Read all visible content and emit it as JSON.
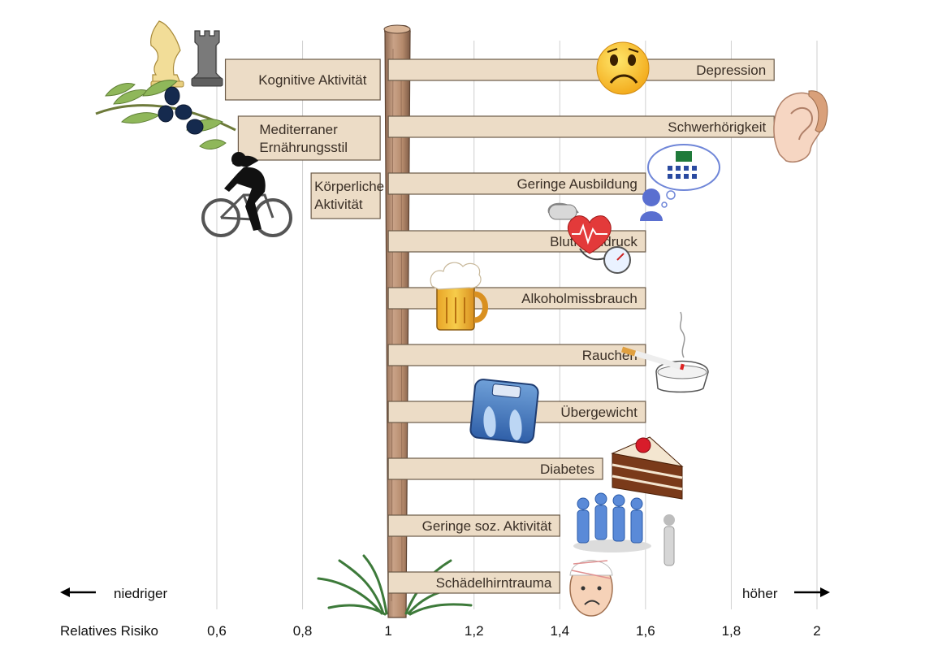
{
  "chart_data": {
    "type": "bar",
    "orientation": "horizontal",
    "baseline": 1,
    "xlim": [
      0.6,
      2.0
    ],
    "grid": true,
    "xlabel": "Relatives Risiko",
    "x_ticks": [
      "0,6",
      "0,8",
      "1",
      "1,2",
      "1,4",
      "1,6",
      "1,8",
      "2"
    ],
    "x_tick_values": [
      0.6,
      0.8,
      1.0,
      1.2,
      1.4,
      1.6,
      1.8,
      2.0
    ],
    "direction_low": "niedriger",
    "direction_high": "höher",
    "protective_factors": [
      {
        "label": "Kognitive Aktivität",
        "value": 0.62,
        "icon": "chess-icon"
      },
      {
        "label": "Mediterraner Ernährungsstil",
        "value": 0.65,
        "icon": "olive-branch-icon"
      },
      {
        "label": "Körperliche Aktivität",
        "value": 0.82,
        "icon": "cyclist-icon"
      }
    ],
    "risk_factors": [
      {
        "label": "Depression",
        "value": 1.9,
        "icon": "sad-face-icon"
      },
      {
        "label": "Schwerhörigkeit",
        "value": 1.9,
        "icon": "ear-icon"
      },
      {
        "label": "Geringe Ausbildung",
        "value": 1.6,
        "icon": "classroom-thought-icon"
      },
      {
        "label": "Bluthochdruck",
        "value": 1.6,
        "icon": "heart-blood-pressure-icon"
      },
      {
        "label": "Alkoholmissbrauch",
        "value": 1.6,
        "icon": "beer-mug-icon"
      },
      {
        "label": "Rauchen",
        "value": 1.6,
        "icon": "cigarette-ashtray-icon"
      },
      {
        "label": "Übergewicht",
        "value": 1.6,
        "icon": "scale-icon"
      },
      {
        "label": "Diabetes",
        "value": 1.5,
        "icon": "cake-icon"
      },
      {
        "label": "Geringe soz. Aktivität",
        "value": 1.4,
        "icon": "isolated-person-icon"
      },
      {
        "label": "Schädelhirntrauma",
        "value": 1.4,
        "icon": "bandaged-head-icon"
      }
    ]
  },
  "colors": {
    "sign_fill": "#ecdcc6",
    "sign_border": "#6b5a48",
    "post": "#b58a6c",
    "grid": "#cfcfcf"
  }
}
